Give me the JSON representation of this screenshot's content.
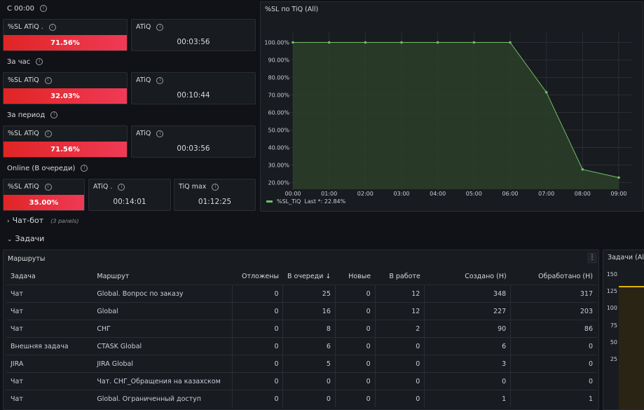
{
  "sections": {
    "since_midnight": "С 00:00",
    "per_hour": "За час",
    "per_period": "За период",
    "online": "Online (В очереди)"
  },
  "stats": {
    "r1_sl_title": "%SL ATiQ .",
    "r1_sl_value": "71.56%",
    "r1_atiq_title": "ATiQ",
    "r1_atiq_value": "00:03:56",
    "r2_sl_title": "%SL ATiQ",
    "r2_sl_value": "32.03%",
    "r2_atiq_title": "ATiQ",
    "r2_atiq_value": "00:10:44",
    "r3_sl_title": "%SL ATiQ",
    "r3_sl_value": "71.56%",
    "r3_atiq_title": "ATiQ",
    "r3_atiq_value": "00:03:56",
    "r4_sl_title": "%SL ATiQ",
    "r4_sl_value": "35.00%",
    "r4_atiq_title": "ATiQ .",
    "r4_atiq_value": "00:14:01",
    "r4_tiq_title": "TiQ max",
    "r4_tiq_value": "01:12:25"
  },
  "graph": {
    "title": "%SL по TiQ (All)",
    "legend_series": "%SL_TiQ",
    "legend_last": "Last *: 22.84%"
  },
  "chart_data": {
    "type": "area",
    "x": [
      "00:00",
      "01:00",
      "02:00",
      "03:00",
      "04:00",
      "05:00",
      "06:00",
      "07:00",
      "08:00",
      "09:00"
    ],
    "series": [
      {
        "name": "%SL_TiQ",
        "values": [
          100,
          100,
          100,
          100,
          100,
          100,
          100,
          71.56,
          27.5,
          22.84
        ]
      }
    ],
    "yticks": [
      "100.00%",
      "90.00%",
      "80.00%",
      "70.00%",
      "60.00%",
      "50.00%",
      "40.00%",
      "30.00%",
      "20.00%"
    ],
    "ylim": [
      17,
      103
    ],
    "grid": true,
    "colors": {
      "line": "#73bf69",
      "fill": "#2b4029"
    }
  },
  "rows": {
    "chatbot_title": "Чат-бот",
    "chatbot_count": "(3 panels)",
    "tasks_title": "Задачи"
  },
  "routes": {
    "title": "Маршруты",
    "menu": "⋮",
    "columns": [
      "Задача",
      "Маршрут",
      "Отложены",
      "В очереди ↓",
      "Новые",
      "В работе",
      "Создано (Н)",
      "Обработано (Н)"
    ],
    "rows": [
      [
        "Чат",
        "Global. Вопрос по заказу",
        "0",
        "25",
        "0",
        "12",
        "348",
        "317"
      ],
      [
        "Чат",
        "Global",
        "0",
        "16",
        "0",
        "12",
        "227",
        "203"
      ],
      [
        "Чат",
        "СНГ",
        "0",
        "8",
        "0",
        "2",
        "90",
        "86"
      ],
      [
        "Внешняя задача",
        "CTASK Global",
        "0",
        "6",
        "0",
        "0",
        "6",
        "0"
      ],
      [
        "JIRA",
        "JIRA Global",
        "0",
        "5",
        "0",
        "0",
        "3",
        "0"
      ],
      [
        "Чат",
        "Чат. СНГ_Обращения на казахском",
        "0",
        "0",
        "0",
        "0",
        "0",
        "0"
      ],
      [
        "Чат",
        "Global. Ограниченный доступ",
        "0",
        "0",
        "0",
        "0",
        "1",
        "1"
      ]
    ]
  },
  "tasks_panel": {
    "title": "Задачи (All",
    "yticks": [
      "150",
      "125",
      "100",
      "75",
      "50",
      "25"
    ]
  }
}
